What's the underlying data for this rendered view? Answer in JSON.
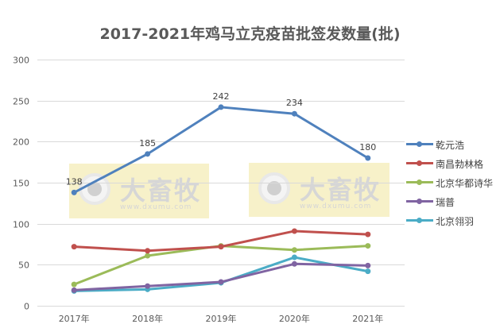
{
  "chart_data": {
    "type": "line",
    "title": "2017-2021年鸡马立克疫苗批签发数量(批)",
    "xlabel": "",
    "ylabel": "",
    "categories": [
      "2017年",
      "2018年",
      "2019年",
      "2020年",
      "2021年"
    ],
    "ylim": [
      0,
      300
    ],
    "yticks": [
      0,
      50,
      100,
      150,
      200,
      250,
      300
    ],
    "grid": true,
    "legend_position": "right",
    "series": [
      {
        "name": "乾元浩",
        "color": "#4F81BD",
        "values": [
          138,
          185,
          242,
          234,
          180
        ],
        "labels": [
          "138",
          "185",
          "242",
          "234",
          "180"
        ]
      },
      {
        "name": "南昌勃林格",
        "color": "#C0504D",
        "values": [
          72,
          67,
          72,
          91,
          87
        ]
      },
      {
        "name": "北京华都诗华",
        "color": "#9BBB59",
        "values": [
          26,
          61,
          73,
          68,
          73
        ]
      },
      {
        "name": "瑞普",
        "color": "#8064A2",
        "values": [
          19,
          24,
          29,
          51,
          49
        ]
      },
      {
        "name": "北京翎羽",
        "color": "#4BACC6",
        "values": [
          18,
          20,
          28,
          59,
          42
        ]
      }
    ]
  },
  "watermarks": [
    {
      "text": "大畜牧",
      "url": "www.dxumu.com"
    },
    {
      "text": "大畜牧",
      "url": "www.dxumu.com"
    }
  ]
}
